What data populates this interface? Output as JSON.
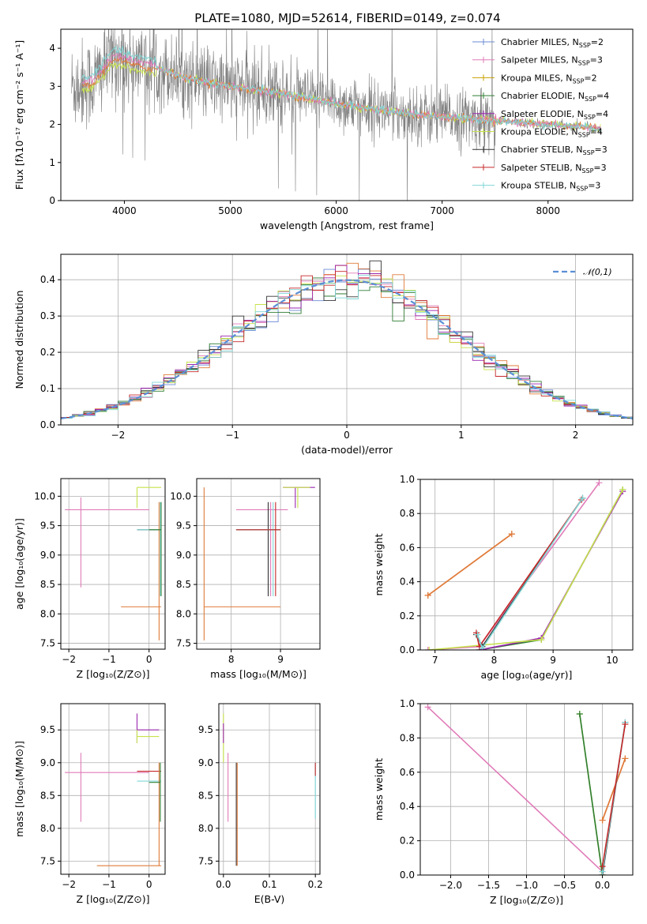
{
  "figure_title": "PLATE=1080, MJD=52614, FIBERID=0149, z=0.074",
  "legend_entries": [
    {
      "name": "Chabrier MILES, N",
      "sub": "SSP",
      "suffix": "=2",
      "color": "#6b8bd6"
    },
    {
      "name": "Salpeter MILES, N",
      "sub": "SSP",
      "suffix": "=3",
      "color": "#e07bb8"
    },
    {
      "name": "Kroupa MILES, N",
      "sub": "SSP",
      "suffix": "=2",
      "color": "#c8a000"
    },
    {
      "name": "Chabrier ELODIE, N",
      "sub": "SSP",
      "suffix": "=4",
      "color": "#2e7d32"
    },
    {
      "name": "Salpeter ELODIE, N",
      "sub": "SSP",
      "suffix": "=4",
      "color": "#9c27b0"
    },
    {
      "name": "Kroupa ELODIE, N",
      "sub": "SSP",
      "suffix": "=4",
      "color": "#c6e24a"
    },
    {
      "name": "Chabrier STELIB, N",
      "sub": "SSP",
      "suffix": "=3",
      "color": "#333333"
    },
    {
      "name": "Salpeter STELIB, N",
      "sub": "SSP",
      "suffix": "=3",
      "color": "#c62828"
    },
    {
      "name": "Kroupa STELIB, N",
      "sub": "SSP",
      "suffix": "=3",
      "color": "#7fd6d6"
    }
  ],
  "chart_data": [
    {
      "id": "spectrum",
      "type": "line",
      "xlabel": "wavelength [Angstrom, rest frame]",
      "ylabel": "Flux [fλ10⁻¹⁷ erg cm⁻² s⁻¹ A⁻¹]",
      "xlim": [
        3400,
        8800
      ],
      "ylim": [
        0,
        4.5
      ],
      "xticks": [
        4000,
        5000,
        6000,
        7000,
        8000
      ],
      "yticks": [
        0,
        1,
        2,
        3,
        4
      ],
      "grid": false,
      "legend": "upper right",
      "data_color": "#808080",
      "continuum": {
        "x": [
          3500,
          3700,
          3900,
          4100,
          4300,
          4600,
          5000,
          5500,
          6000,
          6500,
          7000,
          7500,
          8000,
          8500
        ],
        "y": [
          3.0,
          3.1,
          3.8,
          3.6,
          3.5,
          3.2,
          3.0,
          2.8,
          2.55,
          2.35,
          2.2,
          2.1,
          2.0,
          1.9
        ]
      }
    },
    {
      "id": "residuals",
      "type": "line",
      "xlabel": "(data-model)/error",
      "ylabel": "Normed distribution",
      "xlim": [
        -2.5,
        2.5
      ],
      "ylim": [
        0,
        0.47
      ],
      "xticks": [
        -2,
        -1,
        0,
        1,
        2
      ],
      "yticks": [
        0.0,
        0.1,
        0.2,
        0.3,
        0.4
      ],
      "grid": true,
      "reference_curve": {
        "name": "𝒩(0,1)",
        "color": "#5b8fd6",
        "style": "dashed"
      }
    },
    {
      "id": "age_vs_Z",
      "type": "scatter",
      "xlabel": "Z [log₁₀(Z/Z⊙)]",
      "ylabel": "age  [log₁₀(age/yr)]",
      "xlim": [
        -2.2,
        0.4
      ],
      "ylim": [
        7.4,
        10.3
      ],
      "xticks": [
        -2,
        -1,
        0
      ],
      "yticks": [
        7.5,
        8.0,
        8.5,
        9.0,
        9.5,
        10.0
      ],
      "grid": true
    },
    {
      "id": "age_vs_mass",
      "type": "scatter",
      "xlabel": "mass [log₁₀(M/M⊙)]",
      "ylabel": "",
      "xlim": [
        7.3,
        9.8
      ],
      "ylim": [
        7.4,
        10.3
      ],
      "xticks": [
        8,
        9
      ],
      "yticks": [
        7.5,
        8.0,
        8.5,
        9.0,
        9.5,
        10.0
      ],
      "grid": true
    },
    {
      "id": "massweight_vs_age",
      "type": "line",
      "xlabel": "age  [log₁₀(age/yr)]",
      "ylabel": "mass weight",
      "xlim": [
        6.75,
        10.35
      ],
      "ylim": [
        0,
        1
      ],
      "xticks": [
        7,
        8,
        9,
        10
      ],
      "yticks": [
        0.0,
        0.2,
        0.4,
        0.6,
        0.8,
        1.0
      ],
      "grid": true,
      "series": [
        {
          "name": "Chabrier MILES",
          "x": [
            6.88,
            8.3
          ],
          "y": [
            0.32,
            0.68
          ]
        },
        {
          "name": "Kroupa MILES",
          "x": [
            6.88,
            8.3
          ],
          "y": [
            0.32,
            0.68
          ]
        },
        {
          "name": "Salpeter MILES",
          "x": [
            6.88,
            7.75,
            9.78
          ],
          "y": [
            0.0,
            0.02,
            0.98
          ]
        },
        {
          "name": "Chabrier ELODIE",
          "x": [
            7.75,
            8.8,
            10.18
          ],
          "y": [
            0.0,
            0.06,
            0.94
          ]
        },
        {
          "name": "Salpeter ELODIE",
          "x": [
            7.75,
            8.8,
            10.18
          ],
          "y": [
            0.0,
            0.07,
            0.93
          ]
        },
        {
          "name": "Kroupa ELODIE",
          "x": [
            6.9,
            8.8,
            10.18
          ],
          "y": [
            0.0,
            0.06,
            0.94
          ]
        },
        {
          "name": "Chabrier STELIB",
          "x": [
            7.7,
            7.8,
            9.5
          ],
          "y": [
            0.09,
            0.02,
            0.89
          ]
        },
        {
          "name": "Salpeter STELIB",
          "x": [
            7.7,
            7.75,
            9.48
          ],
          "y": [
            0.1,
            0.02,
            0.88
          ]
        },
        {
          "name": "Kroupa STELIB",
          "x": [
            7.72,
            7.8,
            9.5
          ],
          "y": [
            0.09,
            0.01,
            0.89
          ]
        }
      ]
    },
    {
      "id": "mass_vs_Z",
      "type": "scatter",
      "xlabel": "Z [log₁₀(Z/Z⊙)]",
      "ylabel": "mass [log₁₀(M/M⊙)]",
      "xlim": [
        -2.2,
        0.4
      ],
      "ylim": [
        7.3,
        9.9
      ],
      "xticks": [
        -2,
        -1,
        0
      ],
      "yticks": [
        7.5,
        8.0,
        8.5,
        9.0,
        9.5
      ],
      "grid": true
    },
    {
      "id": "mass_vs_EBV",
      "type": "scatter",
      "xlabel": "E(B-V)",
      "ylabel": "",
      "xlim": [
        -0.01,
        0.21
      ],
      "ylim": [
        7.3,
        9.9
      ],
      "xticks": [
        0.0,
        0.1,
        0.2
      ],
      "yticks": [
        7.5,
        8.0,
        8.5,
        9.0,
        9.5
      ],
      "grid": true
    },
    {
      "id": "massweight_vs_Z",
      "type": "line",
      "xlabel": "Z [log₁₀(Z/Z⊙)]",
      "ylabel": "mass weight",
      "xlim": [
        -2.4,
        0.4
      ],
      "ylim": [
        0,
        1
      ],
      "xticks": [
        -2.0,
        -1.5,
        -1.0,
        -0.5,
        0.0
      ],
      "yticks": [
        0.0,
        0.2,
        0.4,
        0.6,
        0.8,
        1.0
      ],
      "grid": true,
      "series": [
        {
          "name": "Salpeter MILES",
          "x": [
            -2.3,
            0.0
          ],
          "y": [
            0.98,
            0.02
          ]
        },
        {
          "name": "Chabrier MILES",
          "x": [
            0.0,
            0.3
          ],
          "y": [
            0.32,
            0.68
          ]
        },
        {
          "name": "Kroupa MILES",
          "x": [
            0.0,
            0.3
          ],
          "y": [
            0.32,
            0.68
          ]
        },
        {
          "name": "Kroupa ELODIE",
          "x": [
            -0.3,
            0.0
          ],
          "y": [
            0.94,
            0.0
          ]
        },
        {
          "name": "Chabrier ELODIE",
          "x": [
            -0.3,
            0.0
          ],
          "y": [
            0.94,
            0.0
          ]
        },
        {
          "name": "Chabrier STELIB",
          "x": [
            0.0,
            0.3
          ],
          "y": [
            0.0,
            0.89
          ]
        },
        {
          "name": "Kroupa STELIB",
          "x": [
            0.0,
            0.3
          ],
          "y": [
            0.02,
            0.89
          ]
        },
        {
          "name": "Salpeter STELIB",
          "x": [
            0.0,
            0.3
          ],
          "y": [
            0.05,
            0.88
          ]
        }
      ]
    }
  ]
}
